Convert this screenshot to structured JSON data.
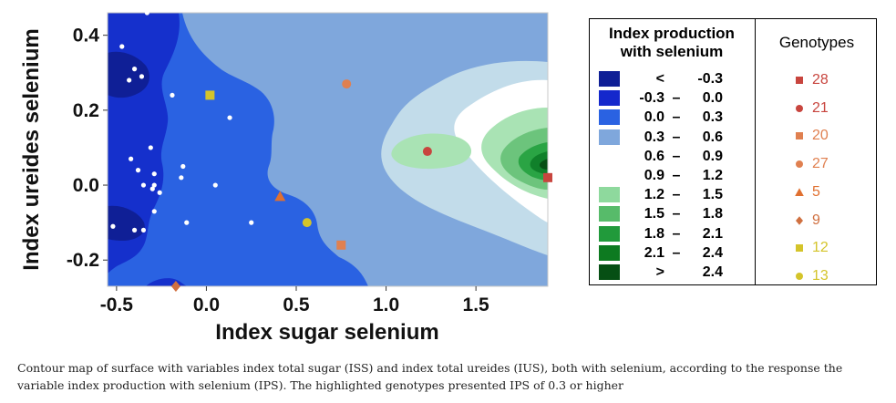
{
  "chart_data": {
    "type": "contour",
    "xlabel": "Index sugar selenium",
    "ylabel": "Index ureides selenium",
    "xlim": [
      -0.55,
      1.9
    ],
    "ylim": [
      -0.27,
      0.46
    ],
    "xticks": [
      "-0.5",
      "0.0",
      "0.5",
      "1.0",
      "1.5"
    ],
    "yticks": [
      "-0.2",
      "0.0",
      "0.2",
      "0.4"
    ],
    "contour_legend_title": "Index production with selenium",
    "levels": [
      {
        "lo": "<",
        "dash": "",
        "hi": "-0.3",
        "color": "#0f1f96"
      },
      {
        "lo": "-0.3",
        "dash": "–",
        "hi": "0.0",
        "color": "#1428cc"
      },
      {
        "lo": "0.0",
        "dash": "–",
        "hi": "0.3",
        "color": "#2a62e2"
      },
      {
        "lo": "0.3",
        "dash": "–",
        "hi": "0.6",
        "color": "#7fa7dc"
      },
      {
        "lo": "0.6",
        "dash": "–",
        "hi": "0.9",
        "color": "#ffffff"
      },
      {
        "lo": "0.9",
        "dash": "–",
        "hi": "1.2",
        "color": "#ffffff"
      },
      {
        "lo": "1.2",
        "dash": "–",
        "hi": "1.5",
        "color": "#8ed99d"
      },
      {
        "lo": "1.5",
        "dash": "–",
        "hi": "1.8",
        "color": "#57bb6a"
      },
      {
        "lo": "1.8",
        "dash": "–",
        "hi": "2.1",
        "color": "#219a3b"
      },
      {
        "lo": "2.1",
        "dash": "–",
        "hi": "2.4",
        "color": "#0d7a20"
      },
      {
        "lo": ">",
        "dash": "",
        "hi": "2.4",
        "color": "#064f14"
      }
    ],
    "genotype_legend_title": "Genotypes",
    "genotypes": [
      {
        "name": "28",
        "marker": "square",
        "color": "#c8453e",
        "x": 1.9,
        "y": 0.02
      },
      {
        "name": "21",
        "marker": "circle",
        "color": "#c8453e",
        "x": 1.23,
        "y": 0.09
      },
      {
        "name": "20",
        "marker": "square",
        "color": "#e08050",
        "x": 0.75,
        "y": -0.16
      },
      {
        "name": "27",
        "marker": "circle",
        "color": "#e08050",
        "x": 0.78,
        "y": 0.27
      },
      {
        "name": "5",
        "marker": "triangle",
        "color": "#e07030",
        "x": 0.41,
        "y": -0.03
      },
      {
        "name": "9",
        "marker": "diamond",
        "color": "#d07040",
        "x": -0.17,
        "y": -0.27
      },
      {
        "name": "12",
        "marker": "square",
        "color": "#d4c42a",
        "x": 0.02,
        "y": 0.24
      },
      {
        "name": "13",
        "marker": "circle",
        "color": "#d4c42a",
        "x": 0.56,
        "y": -0.1
      }
    ],
    "other_points": [
      [
        -0.33,
        0.46
      ],
      [
        -0.47,
        0.37
      ],
      [
        -0.4,
        0.31
      ],
      [
        -0.43,
        0.28
      ],
      [
        -0.36,
        0.29
      ],
      [
        -0.19,
        0.24
      ],
      [
        0.13,
        0.18
      ],
      [
        -0.31,
        0.1
      ],
      [
        -0.42,
        0.07
      ],
      [
        -0.38,
        0.04
      ],
      [
        -0.29,
        0.03
      ],
      [
        -0.13,
        0.05
      ],
      [
        -0.14,
        0.02
      ],
      [
        -0.35,
        0.0
      ],
      [
        -0.29,
        0.0
      ],
      [
        -0.3,
        -0.01
      ],
      [
        0.05,
        0.0
      ],
      [
        -0.26,
        -0.02
      ],
      [
        -0.29,
        -0.07
      ],
      [
        -0.52,
        -0.11
      ],
      [
        -0.35,
        -0.12
      ],
      [
        -0.11,
        -0.1
      ],
      [
        0.25,
        -0.1
      ],
      [
        -0.4,
        -0.12
      ]
    ]
  },
  "caption": "Contour map of surface with variables index total sugar (ISS) and index total ureides (IUS), both with selenium, according to the response the variable index production with selenium (IPS). The highlighted genotypes presented IPS of 0.3 or higher"
}
